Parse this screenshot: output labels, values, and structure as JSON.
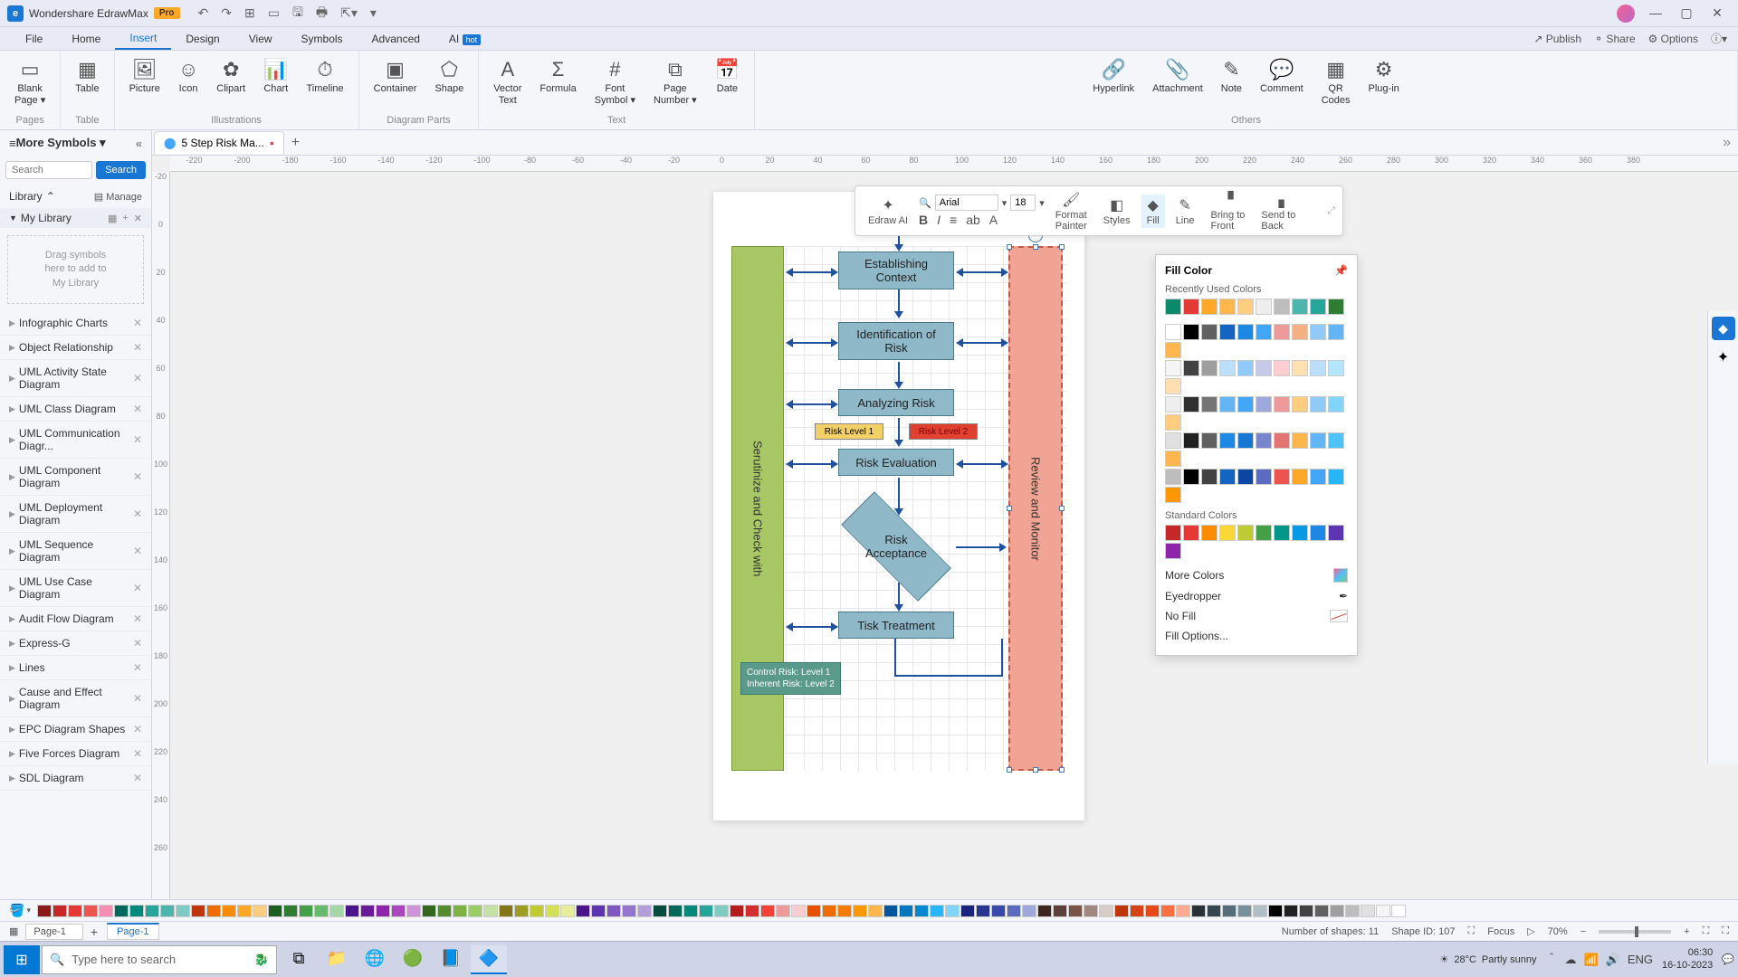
{
  "titlebar": {
    "app_name": "Wondershare EdrawMax",
    "pro": "Pro"
  },
  "menubar": {
    "items": [
      "File",
      "Home",
      "Insert",
      "Design",
      "View",
      "Symbols",
      "Advanced",
      "AI"
    ],
    "active_index": 2,
    "hot": "hot",
    "right": {
      "publish": "Publish",
      "share": "Share",
      "options": "Options"
    }
  },
  "ribbon": {
    "groups": [
      {
        "label": "Pages",
        "items": [
          {
            "label": "Blank\nPage ▾"
          }
        ]
      },
      {
        "label": "Table",
        "items": [
          {
            "label": "Table"
          }
        ]
      },
      {
        "label": "Illustrations",
        "items": [
          {
            "label": "Picture"
          },
          {
            "label": "Icon"
          },
          {
            "label": "Clipart"
          },
          {
            "label": "Chart"
          },
          {
            "label": "Timeline"
          }
        ]
      },
      {
        "label": "Diagram Parts",
        "items": [
          {
            "label": "Container"
          },
          {
            "label": "Shape"
          }
        ]
      },
      {
        "label": "Text",
        "items": [
          {
            "label": "Vector\nText"
          },
          {
            "label": "Formula"
          },
          {
            "label": "Font\nSymbol ▾"
          },
          {
            "label": "Page\nNumber ▾"
          },
          {
            "label": "Date"
          }
        ]
      },
      {
        "label": "Others",
        "items": [
          {
            "label": "Hyperlink"
          },
          {
            "label": "Attachment"
          },
          {
            "label": "Note"
          },
          {
            "label": "Comment"
          },
          {
            "label": "QR\nCodes"
          },
          {
            "label": "Plug-in"
          }
        ]
      }
    ]
  },
  "tabbar": {
    "more_symbols": "More Symbols ▾",
    "doc_name": "5 Step Risk Ma..."
  },
  "left": {
    "search_placeholder": "Search",
    "search_btn": "Search",
    "library": "Library",
    "manage": "Manage",
    "mylib": "My Library",
    "dragzone": "Drag symbols\nhere to add to\nMy Library",
    "cats": [
      "Infographic Charts",
      "Object Relationship",
      "UML Activity State Diagram",
      "UML Class Diagram",
      "UML Communication Diagr...",
      "UML Component Diagram",
      "UML Deployment Diagram",
      "UML Sequence Diagram",
      "UML Use Case Diagram",
      "Audit Flow Diagram",
      "Express-G",
      "Lines",
      "Cause and Effect Diagram",
      "EPC Diagram Shapes",
      "Five Forces Diagram",
      "SDL Diagram"
    ]
  },
  "ruler_h": [
    "-220",
    "-200",
    "-180",
    "-160",
    "-140",
    "-120",
    "-100",
    "-80",
    "-60",
    "-40",
    "-20",
    "0",
    "20",
    "40",
    "60",
    "80",
    "100",
    "120",
    "140",
    "160",
    "180",
    "200",
    "220",
    "240",
    "260",
    "280",
    "300",
    "320",
    "340",
    "360",
    "380"
  ],
  "ruler_v": [
    "-20",
    "0",
    "20",
    "40",
    "60",
    "80",
    "100",
    "120",
    "140",
    "160",
    "180",
    "200",
    "220",
    "240",
    "260"
  ],
  "diagram": {
    "green_label": "Serutinize and Check with",
    "red_label": "Review and Monitor",
    "boxes": {
      "b1": "Establishing\nContext",
      "b2": "Identification of\nRisk",
      "b3": "Analyzing Risk",
      "b4": "Risk Evaluation",
      "b5": "Risk\nAcceptance",
      "b6": "Tisk Treatment",
      "lvl1": "Risk Level 1",
      "lvl2": "Risk Level 2",
      "legend1": "Control Risk: Level 1",
      "legend2": "Inherent Risk: Level 2"
    },
    "colors": {
      "box_fill": "#8fb8c8",
      "box_border": "#4a7a8a",
      "green_fill": "#a8c865",
      "red_fill": "#f2a494",
      "lvl1_fill": "#f2d066",
      "lvl2_fill": "#e04030",
      "legend_fill": "#4a9688",
      "arrow": "#2050a0"
    }
  },
  "float_toolbar": {
    "edraw_ai": "Edraw AI",
    "font": "Arial",
    "size": "18",
    "format_painter": "Format\nPainter",
    "styles": "Styles",
    "fill": "Fill",
    "line": "Line",
    "bring": "Bring to\nFront",
    "send": "Send to\nBack"
  },
  "fill_popup": {
    "title": "Fill Color",
    "recent_label": "Recently Used Colors",
    "recent": [
      "#0d8a6a",
      "#e53935",
      "#ffa726",
      "#ffb74d",
      "#ffcc80",
      "#eeeeee",
      "#bdbdbd",
      "#4db6ac",
      "#26a69a",
      "#2e7d32"
    ],
    "theme_row1": [
      "#ffffff",
      "#000000",
      "#616161",
      "#1565c0",
      "#1e88e5",
      "#42a5f5",
      "#ef9a9a",
      "#f4b183",
      "#90caf9",
      "#64b5f6",
      "#ffb74d"
    ],
    "theme_grid": [
      [
        "#f5f5f5",
        "#424242",
        "#9e9e9e",
        "#bbdefb",
        "#90caf9",
        "#c5cae9",
        "#ffcdd2",
        "#ffe0b2",
        "#bbdefb",
        "#b3e5fc",
        "#ffe0b2"
      ],
      [
        "#eeeeee",
        "#303030",
        "#757575",
        "#64b5f6",
        "#42a5f5",
        "#9fa8da",
        "#ef9a9a",
        "#ffcc80",
        "#90caf9",
        "#81d4fa",
        "#ffcc80"
      ],
      [
        "#e0e0e0",
        "#212121",
        "#616161",
        "#1e88e5",
        "#1976d2",
        "#7986cb",
        "#e57373",
        "#ffb74d",
        "#64b5f6",
        "#4fc3f7",
        "#ffb74d"
      ],
      [
        "#bdbdbd",
        "#000000",
        "#424242",
        "#1565c0",
        "#0d47a1",
        "#5c6bc0",
        "#ef5350",
        "#ffa726",
        "#42a5f5",
        "#29b6f6",
        "#ff9800"
      ]
    ],
    "standard_label": "Standard Colors",
    "standard": [
      "#c62828",
      "#e53935",
      "#fb8c00",
      "#fdd835",
      "#c0ca33",
      "#43a047",
      "#009688",
      "#039be5",
      "#1e88e5",
      "#5e35b1",
      "#8e24aa"
    ],
    "more_colors": "More Colors",
    "eyedropper": "Eyedropper",
    "no_fill": "No Fill",
    "fill_options": "Fill Options..."
  },
  "color_strip": [
    "#8b1a1a",
    "#c62828",
    "#e53935",
    "#ef5350",
    "#f48fb1",
    "#00695c",
    "#00897b",
    "#26a69a",
    "#4db6ac",
    "#80cbc4",
    "#bf360c",
    "#ef6c00",
    "#fb8c00",
    "#ffa726",
    "#ffcc80",
    "#1b5e20",
    "#2e7d32",
    "#43a047",
    "#66bb6a",
    "#a5d6a7",
    "#4a148c",
    "#6a1b9a",
    "#8e24aa",
    "#ab47bc",
    "#ce93d8",
    "#33691e",
    "#558b2f",
    "#7cb342",
    "#9ccc65",
    "#c5e1a5",
    "#827717",
    "#9e9d24",
    "#c0ca33",
    "#d4e157",
    "#e6ee9c",
    "#4a148c",
    "#5e35b1",
    "#7e57c2",
    "#9575cd",
    "#b39ddb",
    "#004d40",
    "#00695c",
    "#00897b",
    "#26a69a",
    "#80cbc4",
    "#b71c1c",
    "#d32f2f",
    "#f44336",
    "#ef9a9a",
    "#ffcdd2",
    "#e65100",
    "#ef6c00",
    "#f57c00",
    "#ff9800",
    "#ffb74d",
    "#01579b",
    "#0277bd",
    "#0288d1",
    "#29b6f6",
    "#81d4fa",
    "#1a237e",
    "#283593",
    "#3949ab",
    "#5c6bc0",
    "#9fa8da",
    "#3e2723",
    "#5d4037",
    "#795548",
    "#a1887f",
    "#d7ccc8",
    "#bf360c",
    "#d84315",
    "#e64a19",
    "#ff7043",
    "#ffab91",
    "#263238",
    "#37474f",
    "#546e7a",
    "#78909c",
    "#b0bec5",
    "#000000",
    "#212121",
    "#424242",
    "#616161",
    "#9e9e9e",
    "#bdbdbd",
    "#e0e0e0",
    "#f5f5f5",
    "#ffffff"
  ],
  "statusbar": {
    "page_dropdown": "Page-1",
    "page_tab": "Page-1",
    "shapes": "Number of shapes: 11",
    "shape_id": "Shape ID: 107",
    "focus": "Focus",
    "zoom": "70%"
  },
  "taskbar": {
    "search": "Type here to search",
    "weather_temp": "28°C",
    "weather_desc": "Partly sunny",
    "lang": "ENG",
    "time": "06:30",
    "date": "16-10-2023"
  }
}
